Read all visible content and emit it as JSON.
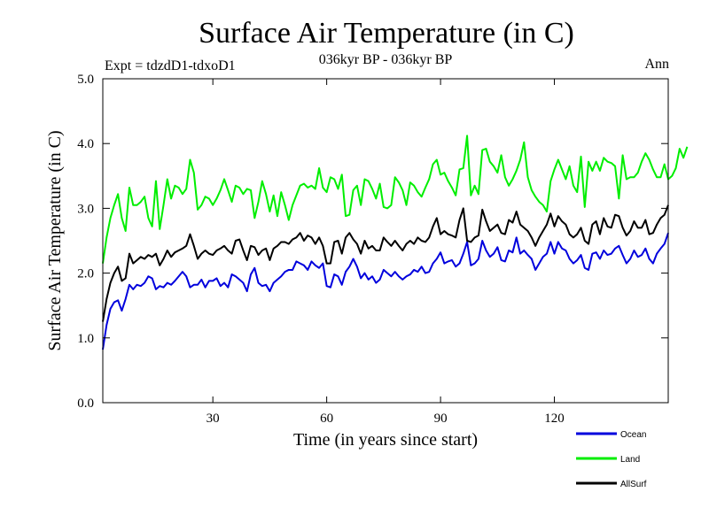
{
  "chart_data": {
    "type": "line",
    "title": "Surface Air Temperature (in C)",
    "subtitle": "036kyr BP - 036kyr BP",
    "left_label": "Expt = tdzdD1-tdxoD1",
    "right_label": "Ann",
    "xlabel": "Time (in years since start)",
    "ylabel": "Surface Air Temperature (in C)",
    "xlim": [
      1,
      150
    ],
    "ylim": [
      0,
      5
    ],
    "x_ticks": [
      30,
      60,
      90,
      120
    ],
    "x_tick_labels": [
      "30",
      "60",
      "90",
      "120"
    ],
    "y_ticks": [
      0,
      1,
      2,
      3,
      4,
      5
    ],
    "y_tick_labels": [
      "0.0",
      "1.0",
      "2.0",
      "3.0",
      "4.0",
      "5.0"
    ],
    "legend_position": "bottom-right",
    "series": [
      {
        "name": "Ocean",
        "color": "#0000dd",
        "x_start": 1,
        "values": [
          0.82,
          1.2,
          1.45,
          1.55,
          1.58,
          1.42,
          1.6,
          1.82,
          1.75,
          1.82,
          1.8,
          1.85,
          1.95,
          1.92,
          1.75,
          1.8,
          1.78,
          1.85,
          1.82,
          1.88,
          1.95,
          2.02,
          1.95,
          1.78,
          1.82,
          1.82,
          1.9,
          1.78,
          1.88,
          1.88,
          1.92,
          1.8,
          1.85,
          1.78,
          1.98,
          1.95,
          1.9,
          1.85,
          1.72,
          1.98,
          2.08,
          1.85,
          1.8,
          1.82,
          1.72,
          1.85,
          1.9,
          1.95,
          2.02,
          2.05,
          2.05,
          2.18,
          2.15,
          2.12,
          2.05,
          2.18,
          2.12,
          2.08,
          2.15,
          1.8,
          1.78,
          1.98,
          1.95,
          1.82,
          2.02,
          2.1,
          2.22,
          2.1,
          1.92,
          2.0,
          1.9,
          1.95,
          1.85,
          1.9,
          2.05,
          2.0,
          1.95,
          2.02,
          1.95,
          1.9,
          1.95,
          1.98,
          2.05,
          2.02,
          2.1,
          2.0,
          2.02,
          2.15,
          2.22,
          2.32,
          2.15,
          2.18,
          2.2,
          2.1,
          2.15,
          2.3,
          2.48,
          2.12,
          2.15,
          2.22,
          2.5,
          2.35,
          2.25,
          2.3,
          2.4,
          2.2,
          2.18,
          2.35,
          2.32,
          2.55,
          2.3,
          2.35,
          2.28,
          2.22,
          2.05,
          2.15,
          2.25,
          2.3,
          2.48,
          2.3,
          2.48,
          2.38,
          2.35,
          2.22,
          2.15,
          2.2,
          2.28,
          2.08,
          2.05,
          2.3,
          2.32,
          2.22,
          2.35,
          2.28,
          2.3,
          2.38,
          2.42,
          2.28,
          2.15,
          2.22,
          2.35,
          2.25,
          2.28,
          2.38,
          2.22,
          2.15,
          2.3,
          2.38,
          2.45,
          2.62
        ]
      },
      {
        "name": "Land",
        "color": "#00ee00",
        "x_start": 1,
        "values": [
          2.15,
          2.55,
          2.85,
          3.05,
          3.22,
          2.85,
          2.65,
          3.32,
          3.05,
          3.05,
          3.1,
          3.18,
          2.85,
          2.72,
          3.42,
          2.68,
          3.05,
          3.45,
          3.15,
          3.35,
          3.32,
          3.22,
          3.3,
          3.75,
          3.55,
          2.98,
          3.05,
          3.18,
          3.15,
          3.05,
          3.15,
          3.28,
          3.45,
          3.28,
          3.1,
          3.35,
          3.32,
          3.22,
          3.3,
          3.28,
          2.85,
          3.1,
          3.42,
          3.22,
          2.95,
          3.2,
          2.88,
          3.25,
          3.05,
          2.82,
          3.05,
          3.2,
          3.35,
          3.38,
          3.32,
          3.35,
          3.3,
          3.62,
          3.32,
          3.25,
          3.48,
          3.45,
          3.3,
          3.52,
          2.88,
          2.9,
          3.28,
          3.35,
          3.05,
          3.45,
          3.42,
          3.3,
          3.15,
          3.38,
          3.02,
          3.0,
          3.05,
          3.48,
          3.4,
          3.28,
          3.05,
          3.4,
          3.35,
          3.25,
          3.18,
          3.32,
          3.45,
          3.68,
          3.75,
          3.52,
          3.55,
          3.42,
          3.32,
          3.2,
          3.6,
          3.62,
          4.12,
          3.2,
          3.35,
          3.22,
          3.9,
          3.92,
          3.72,
          3.65,
          3.55,
          3.82,
          3.48,
          3.35,
          3.45,
          3.58,
          3.75,
          4.02,
          3.48,
          3.28,
          3.18,
          3.1,
          3.05,
          2.95,
          3.42,
          3.6,
          3.75,
          3.6,
          3.45,
          3.65,
          3.35,
          3.25,
          3.8,
          3.02,
          3.72,
          3.58,
          3.72,
          3.58,
          3.78,
          3.72,
          3.7,
          3.65,
          3.15,
          3.82,
          3.45,
          3.48,
          3.48,
          3.55,
          3.72,
          3.85,
          3.75,
          3.6,
          3.48,
          3.48,
          3.68,
          3.45,
          3.5,
          3.62,
          3.92,
          3.78,
          3.95
        ]
      },
      {
        "name": "AllSurf",
        "color": "#000000",
        "x_start": 1,
        "values": [
          1.25,
          1.6,
          1.85,
          2.0,
          2.1,
          1.88,
          1.92,
          2.3,
          2.15,
          2.2,
          2.25,
          2.22,
          2.28,
          2.25,
          2.3,
          2.12,
          2.22,
          2.35,
          2.25,
          2.32,
          2.35,
          2.38,
          2.42,
          2.6,
          2.42,
          2.22,
          2.3,
          2.35,
          2.3,
          2.28,
          2.35,
          2.38,
          2.42,
          2.35,
          2.3,
          2.5,
          2.52,
          2.35,
          2.2,
          2.42,
          2.4,
          2.28,
          2.35,
          2.38,
          2.2,
          2.38,
          2.42,
          2.48,
          2.48,
          2.45,
          2.52,
          2.55,
          2.62,
          2.5,
          2.58,
          2.55,
          2.45,
          2.55,
          2.42,
          2.15,
          2.15,
          2.48,
          2.5,
          2.3,
          2.55,
          2.62,
          2.52,
          2.45,
          2.3,
          2.5,
          2.38,
          2.42,
          2.35,
          2.35,
          2.55,
          2.48,
          2.42,
          2.5,
          2.42,
          2.35,
          2.45,
          2.5,
          2.45,
          2.55,
          2.5,
          2.48,
          2.55,
          2.72,
          2.85,
          2.6,
          2.65,
          2.6,
          2.58,
          2.55,
          2.82,
          3.0,
          2.5,
          2.48,
          2.55,
          2.58,
          2.98,
          2.8,
          2.65,
          2.7,
          2.75,
          2.62,
          2.6,
          2.82,
          2.78,
          2.95,
          2.75,
          2.7,
          2.65,
          2.55,
          2.42,
          2.55,
          2.65,
          2.75,
          2.92,
          2.72,
          2.88,
          2.8,
          2.75,
          2.6,
          2.55,
          2.6,
          2.7,
          2.5,
          2.45,
          2.75,
          2.8,
          2.6,
          2.85,
          2.72,
          2.7,
          2.9,
          2.88,
          2.7,
          2.58,
          2.65,
          2.8,
          2.7,
          2.7,
          2.82,
          2.6,
          2.62,
          2.75,
          2.85,
          2.9,
          3.05
        ]
      }
    ]
  }
}
